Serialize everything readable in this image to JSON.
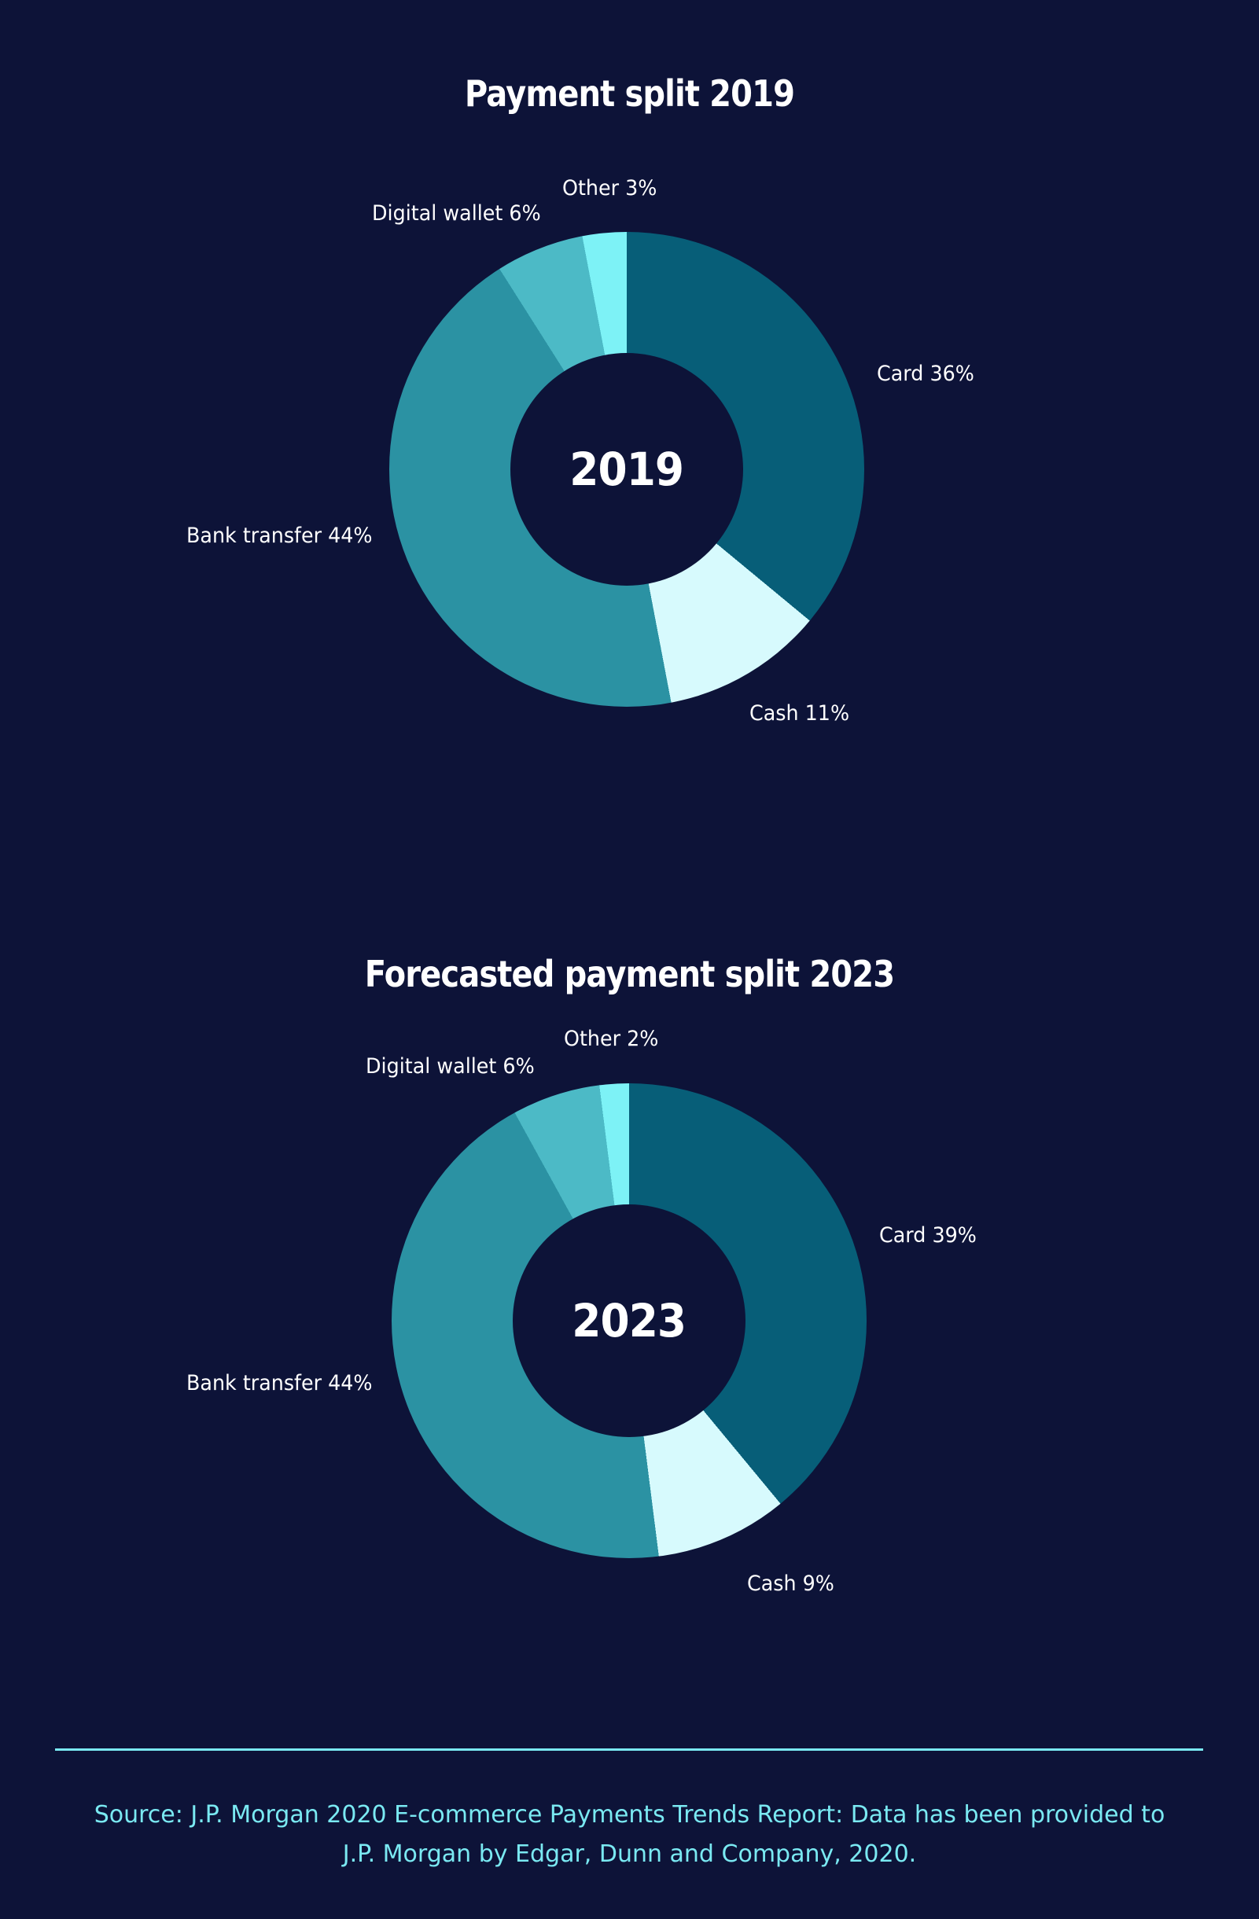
{
  "theme": {
    "bg": "#0d1338",
    "text": "#ffffff",
    "accent": "#7ae9f2"
  },
  "charts": [
    {
      "title": "Payment split 2019",
      "center_label": "2019",
      "labels": {
        "other": "Other 3%",
        "wallet": "Digital wallet 6%",
        "card": "Card 36%",
        "bank": "Bank transfer 44%",
        "cash": "Cash 11%"
      }
    },
    {
      "title": "Forecasted payment split 2023",
      "center_label": "2023",
      "labels": {
        "other": "Other 2%",
        "wallet": "Digital wallet 6%",
        "card": "Card 39%",
        "bank": "Bank transfer 44%",
        "cash": "Cash 9%"
      }
    }
  ],
  "chart_data": [
    {
      "type": "pie",
      "subtype": "donut",
      "title": "Payment split 2019",
      "center_label": "2019",
      "unit": "%",
      "start_angle_deg": 0,
      "direction": "clockwise",
      "donut_hole_ratio": 0.49,
      "categories": [
        "Card",
        "Cash",
        "Bank transfer",
        "Digital wallet",
        "Other"
      ],
      "values": [
        36,
        11,
        44,
        6,
        3
      ],
      "segments": [
        {
          "label": "Card",
          "value": 36,
          "color": "#075e78"
        },
        {
          "label": "Cash",
          "value": 11,
          "color": "#d7fafd"
        },
        {
          "label": "Bank transfer",
          "value": 44,
          "color": "#2b92a3"
        },
        {
          "label": "Digital wallet",
          "value": 6,
          "color": "#4cbac6"
        },
        {
          "label": "Other",
          "value": 3,
          "color": "#7df2f6"
        }
      ]
    },
    {
      "type": "pie",
      "subtype": "donut",
      "title": "Forecasted payment split 2023",
      "center_label": "2023",
      "unit": "%",
      "start_angle_deg": 0,
      "direction": "clockwise",
      "donut_hole_ratio": 0.49,
      "categories": [
        "Card",
        "Cash",
        "Bank transfer",
        "Digital wallet",
        "Other"
      ],
      "values": [
        39,
        9,
        44,
        6,
        2
      ],
      "segments": [
        {
          "label": "Card",
          "value": 39,
          "color": "#075e78"
        },
        {
          "label": "Cash",
          "value": 9,
          "color": "#d7fafd"
        },
        {
          "label": "Bank transfer",
          "value": 44,
          "color": "#2b92a3"
        },
        {
          "label": "Digital wallet",
          "value": 6,
          "color": "#4cbac6"
        },
        {
          "label": "Other",
          "value": 2,
          "color": "#7df2f6"
        }
      ]
    }
  ],
  "footer": {
    "source_line1": "Source: J.P. Morgan 2020 E-commerce Payments Trends Report: Data has been provided to",
    "source_line2": "J.P. Morgan by Edgar, Dunn and Company, 2020."
  }
}
